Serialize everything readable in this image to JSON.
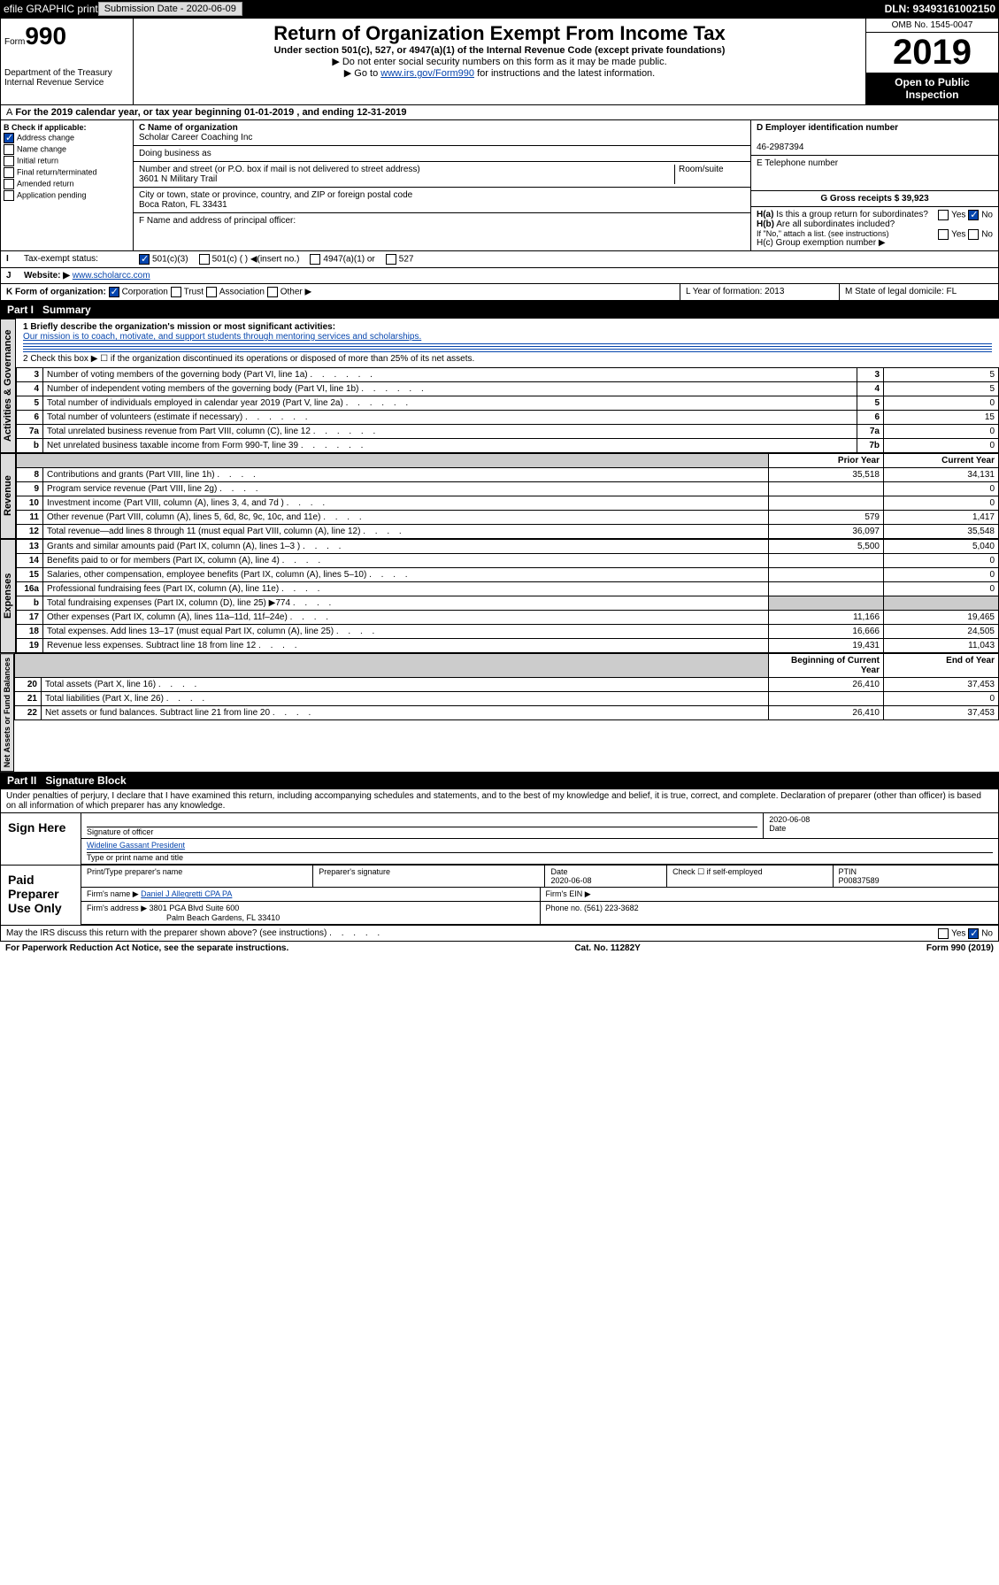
{
  "topbar": {
    "efile": "efile GRAPHIC print",
    "subLabel": "Submission Date - 2020-06-09",
    "dln": "DLN: 93493161002150"
  },
  "hdr": {
    "formNum": "990",
    "formWord": "Form",
    "dept": "Department of the Treasury\nInternal Revenue Service",
    "title": "Return of Organization Exempt From Income Tax",
    "sub1": "Under section 501(c), 527, or 4947(a)(1) of the Internal Revenue Code (except private foundations)",
    "sub2": "▶ Do not enter social security numbers on this form as it may be made public.",
    "sub3": "▶ Go to www.irs.gov/Form990 for instructions and the latest information.",
    "omb": "OMB No. 1545-0047",
    "year": "2019",
    "openPublic": "Open to Public Inspection"
  },
  "period": "For the 2019 calendar year, or tax year beginning 01-01-2019   , and ending 12-31-2019",
  "checkboxes": {
    "hdr": "B Check if applicable:",
    "items": [
      "Address change",
      "Name change",
      "Initial return",
      "Final return/terminated",
      "Amended return",
      "Application pending"
    ],
    "checked": [
      true,
      false,
      false,
      false,
      false,
      false
    ]
  },
  "org": {
    "cLabel": "C Name of organization",
    "name": "Scholar Career Coaching Inc",
    "dba": "Doing business as",
    "addrLabel": "Number and street (or P.O. box if mail is not delivered to street address)",
    "room": "Room/suite",
    "addr": "3601 N Military Trail",
    "cityLabel": "City or town, state or province, country, and ZIP or foreign postal code",
    "city": "Boca Raton, FL  33431",
    "fLabel": "F Name and address of principal officer:"
  },
  "right": {
    "dLabel": "D Employer identification number",
    "ein": "46-2987394",
    "eLabel": "E Telephone number",
    "gLabel": "G Gross receipts $ 39,923",
    "ha": "H(a)  Is this a group return for subordinates?",
    "haYes": "Yes",
    "haNo": "No",
    "hb": "H(b)  Are all subordinates included?",
    "hbNote": "If \"No,\" attach a list. (see instructions)",
    "hc": "H(c)  Group exemption number ▶"
  },
  "status": {
    "i": "I",
    "label": "Tax-exempt status:",
    "c3": "501(c)(3)",
    "cOther": "501(c) ( )  ◀(insert no.)",
    "a1": "4947(a)(1) or",
    "s527": "527"
  },
  "website": {
    "j": "J",
    "label": "Website: ▶",
    "val": "www.scholarcc.com"
  },
  "kform": {
    "k": "K Form of organization:",
    "corp": "Corporation",
    "trust": "Trust",
    "assoc": "Association",
    "other": "Other ▶",
    "l": "L Year of formation: 2013",
    "m": "M State of legal domicile: FL"
  },
  "part1": {
    "hdr": "Part I",
    "title": "Summary",
    "q1": "1  Briefly describe the organization's mission or most significant activities:",
    "mission": "Our mission is to coach, motivate, and support students through mentoring services and scholarships.",
    "q2": "2   Check this box ▶ ☐  if the organization discontinued its operations or disposed of more than 25% of its net assets.",
    "sideA": "Activities & Governance",
    "sideR": "Revenue",
    "sideE": "Expenses",
    "sideN": "Net Assets or Fund Balances",
    "rows": [
      {
        "n": "3",
        "t": "Number of voting members of the governing body (Part VI, line 1a)",
        "box": "3",
        "v": "5"
      },
      {
        "n": "4",
        "t": "Number of independent voting members of the governing body (Part VI, line 1b)",
        "box": "4",
        "v": "5"
      },
      {
        "n": "5",
        "t": "Total number of individuals employed in calendar year 2019 (Part V, line 2a)",
        "box": "5",
        "v": "0"
      },
      {
        "n": "6",
        "t": "Total number of volunteers (estimate if necessary)",
        "box": "6",
        "v": "15"
      },
      {
        "n": "7a",
        "t": "Total unrelated business revenue from Part VIII, column (C), line 12",
        "box": "7a",
        "v": "0"
      },
      {
        "n": "b",
        "t": "Net unrelated business taxable income from Form 990-T, line 39",
        "box": "7b",
        "v": "0"
      }
    ],
    "colPrior": "Prior Year",
    "colCurrent": "Current Year",
    "rev": [
      {
        "n": "8",
        "t": "Contributions and grants (Part VIII, line 1h)",
        "p": "35,518",
        "c": "34,131"
      },
      {
        "n": "9",
        "t": "Program service revenue (Part VIII, line 2g)",
        "p": "",
        "c": "0"
      },
      {
        "n": "10",
        "t": "Investment income (Part VIII, column (A), lines 3, 4, and 7d )",
        "p": "",
        "c": "0"
      },
      {
        "n": "11",
        "t": "Other revenue (Part VIII, column (A), lines 5, 6d, 8c, 9c, 10c, and 11e)",
        "p": "579",
        "c": "1,417"
      },
      {
        "n": "12",
        "t": "Total revenue—add lines 8 through 11 (must equal Part VIII, column (A), line 12)",
        "p": "36,097",
        "c": "35,548"
      }
    ],
    "exp": [
      {
        "n": "13",
        "t": "Grants and similar amounts paid (Part IX, column (A), lines 1–3 )",
        "p": "5,500",
        "c": "5,040"
      },
      {
        "n": "14",
        "t": "Benefits paid to or for members (Part IX, column (A), line 4)",
        "p": "",
        "c": "0"
      },
      {
        "n": "15",
        "t": "Salaries, other compensation, employee benefits (Part IX, column (A), lines 5–10)",
        "p": "",
        "c": "0"
      },
      {
        "n": "16a",
        "t": "Professional fundraising fees (Part IX, column (A), line 11e)",
        "p": "",
        "c": "0"
      },
      {
        "n": "b",
        "t": "Total fundraising expenses (Part IX, column (D), line 25) ▶774",
        "p": "shade",
        "c": "shade"
      },
      {
        "n": "17",
        "t": "Other expenses (Part IX, column (A), lines 11a–11d, 11f–24e)",
        "p": "11,166",
        "c": "19,465"
      },
      {
        "n": "18",
        "t": "Total expenses. Add lines 13–17 (must equal Part IX, column (A), line 25)",
        "p": "16,666",
        "c": "24,505"
      },
      {
        "n": "19",
        "t": "Revenue less expenses. Subtract line 18 from line 12",
        "p": "19,431",
        "c": "11,043"
      }
    ],
    "colBeg": "Beginning of Current Year",
    "colEnd": "End of Year",
    "net": [
      {
        "n": "20",
        "t": "Total assets (Part X, line 16)",
        "p": "26,410",
        "c": "37,453"
      },
      {
        "n": "21",
        "t": "Total liabilities (Part X, line 26)",
        "p": "",
        "c": "0"
      },
      {
        "n": "22",
        "t": "Net assets or fund balances. Subtract line 21 from line 20",
        "p": "26,410",
        "c": "37,453"
      }
    ]
  },
  "part2": {
    "hdr": "Part II",
    "title": "Signature Block",
    "decl": "Under penalties of perjury, I declare that I have examined this return, including accompanying schedules and statements, and to the best of my knowledge and belief, it is true, correct, and complete. Declaration of preparer (other than officer) is based on all information of which preparer has any knowledge.",
    "signHere": "Sign Here",
    "sigOfficer": "Signature of officer",
    "date1": "2020-06-08",
    "dateLbl": "Date",
    "name": "Wideline Gassant President",
    "nameLbl": "Type or print name and title",
    "paid": "Paid Preparer Use Only",
    "prepName": "Print/Type preparer's name",
    "prepSig": "Preparer's signature",
    "prepDate": "Date",
    "prepDateVal": "2020-06-08",
    "checkSelf": "Check ☐ if self-employed",
    "ptin": "PTIN",
    "ptinVal": "P00837589",
    "firmName": "Firm's name   ▶",
    "firm": "Daniel J Allegretti CPA PA",
    "firmEin": "Firm's EIN ▶",
    "firmAddr": "Firm's address ▶",
    "addr": "3801 PGA Blvd Suite 600",
    "addr2": "Palm Beach Gardens, FL  33410",
    "phone": "Phone no. (561) 223-3682",
    "discuss": "May the IRS discuss this return with the preparer shown above? (see instructions)",
    "yes": "Yes",
    "no": "No"
  },
  "footer": {
    "pra": "For Paperwork Reduction Act Notice, see the separate instructions.",
    "cat": "Cat. No. 11282Y",
    "form": "Form 990 (2019)"
  }
}
